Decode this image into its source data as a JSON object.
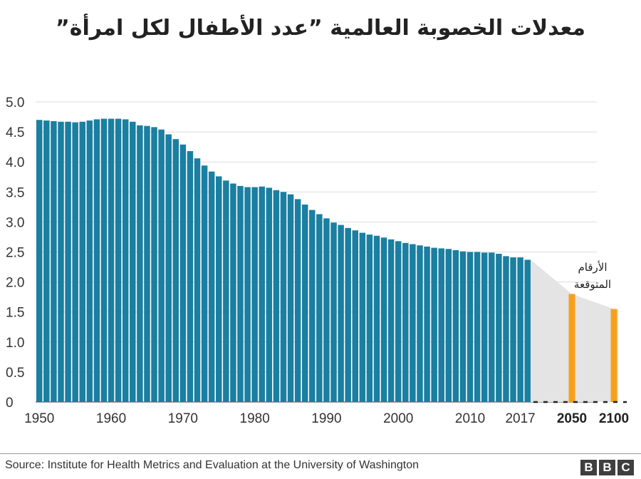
{
  "title": "معدلات الخصوبة العالمية ”عدد الأطفال لكل امرأة”",
  "source": "Source: Institute for Health Metrics and Evaluation at the University of Washington",
  "logo": [
    "B",
    "B",
    "C"
  ],
  "colors": {
    "historical": "#1a7fa0",
    "projected": "#f8a01c",
    "projection_band": "#e4e4e4",
    "grid": "#dddddd"
  },
  "chart_data": {
    "type": "bar",
    "ylim": [
      0,
      5
    ],
    "yticks": [
      "0",
      "0.5",
      "1.0",
      "1.5",
      "2.0",
      "2.5",
      "3.0",
      "3.5",
      "4.0",
      "4.5",
      "5.0"
    ],
    "xticks": [
      "1950",
      "1960",
      "1970",
      "1980",
      "1990",
      "2000",
      "2010",
      "2017"
    ],
    "projected_xticks": [
      "2050",
      "2100"
    ],
    "annotation": [
      "الأرقام",
      "المتوقعة"
    ],
    "historical": {
      "start_year": 1950,
      "values": [
        4.7,
        4.69,
        4.68,
        4.67,
        4.67,
        4.66,
        4.67,
        4.69,
        4.71,
        4.72,
        4.72,
        4.72,
        4.71,
        4.67,
        4.61,
        4.6,
        4.58,
        4.54,
        4.46,
        4.38,
        4.29,
        4.18,
        4.06,
        3.94,
        3.84,
        3.76,
        3.69,
        3.64,
        3.6,
        3.58,
        3.58,
        3.59,
        3.57,
        3.53,
        3.5,
        3.46,
        3.38,
        3.29,
        3.2,
        3.13,
        3.06,
        2.99,
        2.95,
        2.9,
        2.86,
        2.82,
        2.79,
        2.77,
        2.74,
        2.71,
        2.68,
        2.65,
        2.63,
        2.61,
        2.59,
        2.57,
        2.56,
        2.55,
        2.53,
        2.51,
        2.5,
        2.5,
        2.49,
        2.49,
        2.47,
        2.43,
        2.41,
        2.41,
        2.37
      ]
    },
    "projected": {
      "years": [
        "2050",
        "2100"
      ],
      "values": [
        1.8,
        1.55
      ]
    }
  }
}
